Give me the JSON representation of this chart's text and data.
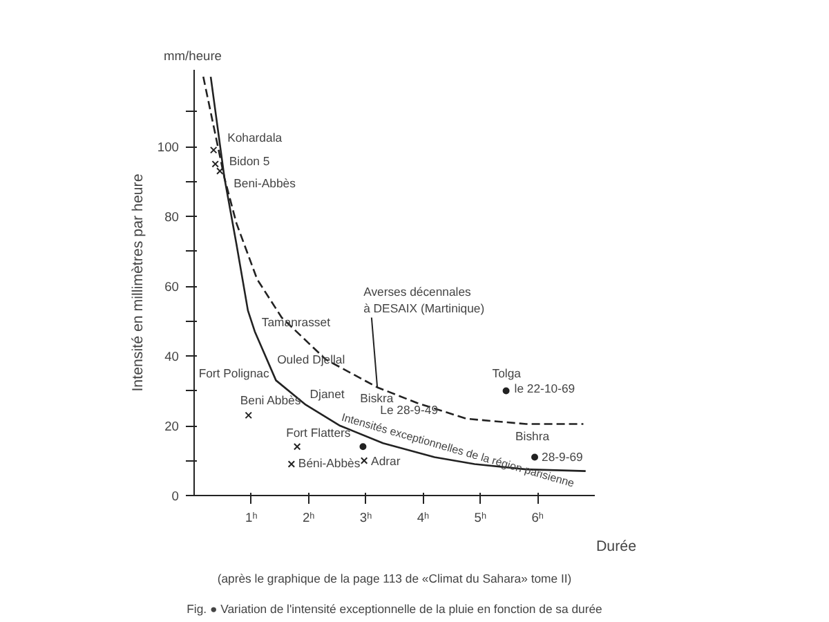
{
  "chart_data": {
    "type": "line",
    "title": "Fig. ● Variation de l'intensité exceptionnelle de la pluie en fonction de sa durée",
    "subtitle": "(après le graphique de la page 113 de «Climat du Sahara» tome II)",
    "xlabel": "Durée",
    "ylabel": "Intensité en millimètres par heure",
    "xlim": [
      0,
      7
    ],
    "ylim": [
      0,
      122
    ],
    "xticks": [
      {
        "value": 1,
        "label": "1ʰ"
      },
      {
        "value": 2,
        "label": "2ʰ"
      },
      {
        "value": 3,
        "label": "3ʰ"
      },
      {
        "value": 4,
        "label": "4ʰ"
      },
      {
        "value": 5,
        "label": "5ʰ"
      },
      {
        "value": 6,
        "label": "6ʰ"
      }
    ],
    "yticks": [
      0,
      {
        "value": 10,
        "label": null
      },
      20,
      {
        "value": 30,
        "label": null
      },
      40,
      {
        "value": 50,
        "label": null
      },
      60,
      {
        "value": 70,
        "label": null
      },
      80,
      {
        "value": 90,
        "label": null
      },
      100,
      {
        "value": 110,
        "label": null
      }
    ],
    "grid": false,
    "series": [
      {
        "line_style": "solid",
        "color": "#222222",
        "x": [
          0.29,
          0.53,
          0.74,
          0.94,
          1.06,
          1.43,
          1.95,
          2.55,
          3.3,
          4.2,
          4.9,
          5.8,
          6.84
        ],
        "values": [
          120,
          91,
          72,
          53,
          47,
          33,
          26,
          20,
          15,
          11,
          9,
          7.5,
          7
        ]
      },
      {
        "line_style": "dashed",
        "color": "#222222",
        "x": [
          0.16,
          0.53,
          0.74,
          1.1,
          1.53,
          2.3,
          3.2,
          3.9,
          4.76,
          5.8,
          6.8
        ],
        "values": [
          120,
          91,
          78,
          62,
          51,
          39,
          31,
          26.5,
          22,
          20.5,
          20.5
        ]
      },
      {
        "type": "scatter",
        "marker": "cross",
        "color": "#222222",
        "x": [
          0.34,
          0.37,
          0.45,
          0.95,
          1.8,
          1.7,
          2.97
        ],
        "values": [
          99,
          95,
          93,
          23,
          14,
          9,
          10
        ]
      },
      {
        "type": "scatter",
        "marker": "circle",
        "color": "#222222",
        "x": [
          2.95,
          5.45,
          5.95
        ],
        "values": [
          14,
          30,
          11
        ]
      }
    ],
    "annotations": [
      "mm/heure",
      {
        "text": "Kohardala",
        "x": 0.34,
        "y": 99
      },
      {
        "text": "Bidon 5",
        "x": 0.37,
        "y": 95
      },
      {
        "text": "Beni-Abbès",
        "x": 0.45,
        "y": 93
      },
      {
        "text": "Tamanrasset",
        "x": 1.06,
        "y": 47
      },
      "Ouled Djellal",
      "Fort Polignac",
      {
        "text": "Beni Abbès",
        "x": 0.95,
        "y": 23
      },
      {
        "text": "Djanet",
        "x": 1.95,
        "y": 26
      },
      "Biskra",
      "Le 28-9-49",
      {
        "text": "Fort Flatters",
        "x": 1.8,
        "y": 14
      },
      {
        "text": "Béni-Abbès",
        "x": 1.7,
        "y": 9
      },
      {
        "text": "Adrar",
        "x": 2.97,
        "y": 10
      },
      {
        "text": "Tolga",
        "x": 5.45,
        "y": 30
      },
      {
        "text": "le 22-10-69",
        "x": 5.45,
        "y": 30
      },
      {
        "text": "Bishra",
        "x": 5.95,
        "y": 11
      },
      {
        "text": "28-9-69",
        "x": 5.95,
        "y": 11
      },
      {
        "text": "Averses décennales\nà DESAIX (Martinique)",
        "x": 3.2,
        "y": 31
      },
      {
        "text": "Intensités exceptionnelles de la région parisienne",
        "x": 2.55,
        "y": 20
      }
    ]
  }
}
